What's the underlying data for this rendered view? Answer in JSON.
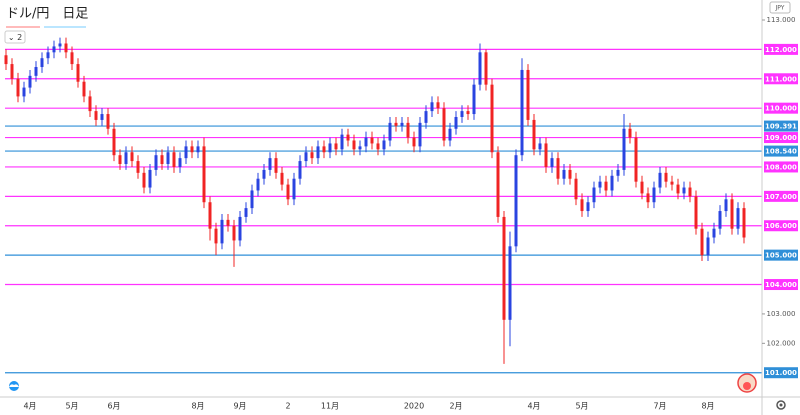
{
  "chart_data": {
    "type": "candlestick",
    "title": "ドル/円　日足",
    "indicator": "⌄ 2",
    "currency": "JPY",
    "up_color": "#2a44e0",
    "down_color": "#f02424",
    "ylim": [
      100.31,
      113.68
    ],
    "yticks": [
      {
        "value": 113,
        "label": "113.000"
      },
      {
        "value": 103,
        "label": "103.000"
      },
      {
        "value": 102,
        "label": "102.000"
      }
    ],
    "hlines": [
      {
        "value": 112,
        "label": "112.000",
        "color": "#ff33ff"
      },
      {
        "value": 111,
        "label": "111.000",
        "color": "#ff33ff"
      },
      {
        "value": 110,
        "label": "110.000",
        "color": "#ff33ff"
      },
      {
        "value": 109.391,
        "label": "109.391",
        "color": "#2f8fd8"
      },
      {
        "value": 109,
        "label": "109.000",
        "color": "#ff33ff"
      },
      {
        "value": 108.54,
        "label": "108.540",
        "color": "#2f8fd8"
      },
      {
        "value": 108,
        "label": "108.000",
        "color": "#ff33ff"
      },
      {
        "value": 107,
        "label": "107.000",
        "color": "#ff33ff"
      },
      {
        "value": 106,
        "label": "106.000",
        "color": "#ff33ff"
      },
      {
        "value": 105,
        "label": "105.000",
        "color": "#2f8fd8"
      },
      {
        "value": 104,
        "label": "104.000",
        "color": "#ff33ff"
      },
      {
        "value": 101,
        "label": "101.000",
        "color": "#2f8fd8"
      }
    ],
    "categories": [
      null,
      null,
      null,
      null,
      "4月",
      null,
      null,
      null,
      null,
      null,
      null,
      "5月",
      null,
      null,
      null,
      null,
      null,
      null,
      "6月",
      null,
      null,
      null,
      null,
      null,
      null,
      null,
      null,
      null,
      null,
      null,
      null,
      null,
      "8月",
      null,
      null,
      null,
      null,
      null,
      null,
      "9月",
      null,
      null,
      null,
      null,
      null,
      null,
      null,
      "2",
      null,
      null,
      null,
      null,
      null,
      null,
      "11月",
      null,
      null,
      null,
      null,
      null,
      null,
      null,
      null,
      null,
      null,
      null,
      null,
      null,
      "2020",
      null,
      null,
      null,
      null,
      null,
      null,
      "2月",
      null,
      null,
      null,
      null,
      null,
      null,
      null,
      null,
      null,
      null,
      null,
      null,
      "4月",
      null,
      null,
      null,
      null,
      null,
      null,
      null,
      "5月",
      null,
      null,
      null,
      null,
      null,
      null,
      null,
      null,
      null,
      null,
      null,
      null,
      "7月",
      null,
      null,
      null,
      null,
      null,
      null,
      null,
      "8月",
      null,
      null,
      null,
      null,
      null,
      null
    ],
    "open": [
      111.8,
      111.5,
      111.0,
      110.4,
      110.7,
      111.1,
      111.4,
      111.7,
      111.9,
      112.1,
      112.2,
      111.9,
      111.5,
      110.9,
      110.4,
      109.9,
      109.6,
      109.8,
      109.3,
      108.4,
      108.1,
      108.5,
      108.2,
      107.8,
      107.3,
      107.9,
      108.4,
      108.1,
      108.5,
      108.0,
      108.3,
      108.7,
      108.5,
      108.7,
      106.8,
      105.9,
      105.4,
      106.2,
      106.0,
      105.5,
      106.3,
      106.6,
      107.2,
      107.6,
      107.9,
      108.3,
      107.8,
      107.4,
      106.9,
      107.6,
      108.2,
      108.5,
      108.3,
      108.7,
      108.5,
      108.8,
      108.6,
      109.1,
      108.9,
      108.6,
      108.7,
      109.0,
      108.8,
      108.6,
      108.9,
      109.5,
      109.4,
      109.5,
      109.0,
      108.7,
      109.5,
      109.9,
      110.2,
      110.0,
      108.9,
      109.3,
      109.7,
      109.9,
      109.8,
      110.8,
      111.9,
      110.8,
      108.5,
      106.3,
      102.8,
      105.3,
      108.4,
      111.3,
      109.6,
      108.6,
      108.8,
      108.0,
      108.3,
      107.6,
      107.9,
      107.6,
      106.9,
      106.5,
      106.8,
      107.3,
      107.5,
      107.2,
      107.7,
      107.9,
      109.3,
      109.0,
      107.5,
      107.1,
      106.8,
      107.3,
      107.8,
      107.5,
      107.4,
      107.1,
      107.3,
      107.0,
      105.9,
      105.0,
      105.6,
      105.9,
      106.5,
      106.9,
      105.9,
      106.6
    ],
    "high": [
      112.0,
      111.7,
      111.2,
      110.9,
      111.3,
      111.6,
      111.9,
      112.1,
      112.3,
      112.4,
      112.4,
      112.1,
      111.7,
      111.1,
      110.6,
      110.1,
      110.0,
      110.0,
      109.5,
      108.6,
      108.7,
      108.7,
      108.4,
      108.0,
      108.1,
      108.6,
      108.6,
      108.7,
      108.7,
      108.5,
      108.9,
      108.9,
      108.9,
      109.0,
      107.0,
      106.1,
      106.4,
      106.4,
      106.2,
      106.5,
      106.8,
      107.4,
      107.8,
      108.1,
      108.5,
      108.5,
      108.0,
      107.6,
      107.8,
      108.4,
      108.7,
      108.7,
      108.9,
      108.9,
      109.0,
      109.0,
      109.3,
      109.3,
      109.1,
      108.9,
      109.2,
      109.2,
      109.0,
      109.1,
      109.7,
      109.7,
      109.7,
      109.7,
      109.2,
      109.7,
      110.1,
      110.4,
      110.4,
      110.2,
      109.5,
      109.9,
      110.1,
      110.1,
      111.0,
      112.2,
      112.0,
      111.0,
      108.7,
      106.5,
      105.8,
      108.6,
      111.7,
      111.5,
      109.8,
      109.0,
      109.0,
      108.5,
      108.5,
      108.1,
      108.1,
      107.8,
      107.1,
      107.0,
      107.5,
      107.7,
      107.7,
      107.9,
      108.1,
      109.8,
      109.5,
      109.2,
      107.7,
      107.3,
      107.5,
      108.0,
      108.0,
      107.7,
      107.6,
      107.5,
      107.5,
      107.2,
      106.1,
      105.8,
      106.1,
      106.7,
      107.1,
      107.1,
      106.8,
      106.8
    ],
    "low": [
      111.3,
      110.8,
      110.2,
      110.2,
      110.5,
      110.9,
      111.2,
      111.5,
      111.7,
      111.9,
      111.7,
      111.3,
      110.7,
      110.2,
      109.7,
      109.4,
      109.4,
      109.1,
      108.2,
      107.9,
      107.9,
      108.0,
      107.6,
      107.1,
      107.1,
      107.7,
      107.9,
      107.9,
      107.8,
      107.8,
      108.1,
      108.3,
      108.3,
      106.6,
      105.5,
      105.0,
      105.2,
      105.8,
      104.6,
      105.3,
      106.1,
      106.4,
      107.0,
      107.4,
      107.7,
      107.6,
      107.2,
      106.7,
      106.7,
      107.4,
      108.0,
      108.1,
      108.1,
      108.3,
      108.3,
      108.4,
      108.4,
      108.7,
      108.4,
      108.4,
      108.5,
      108.6,
      108.4,
      108.4,
      108.7,
      109.2,
      109.2,
      108.8,
      108.5,
      108.5,
      109.3,
      109.7,
      109.8,
      108.7,
      108.7,
      109.1,
      109.5,
      109.6,
      109.6,
      110.6,
      110.6,
      108.3,
      106.1,
      101.3,
      101.9,
      105.1,
      108.2,
      109.4,
      108.4,
      108.4,
      107.8,
      107.8,
      107.4,
      107.4,
      107.4,
      106.7,
      106.3,
      106.3,
      106.6,
      107.1,
      107.0,
      107.0,
      107.5,
      107.7,
      108.8,
      107.3,
      106.9,
      106.6,
      106.6,
      107.1,
      107.3,
      107.2,
      106.9,
      106.9,
      106.8,
      105.7,
      104.8,
      104.8,
      105.4,
      105.7,
      106.3,
      105.7,
      105.7,
      105.4
    ],
    "close": [
      111.5,
      111.0,
      110.4,
      110.7,
      111.1,
      111.4,
      111.7,
      111.9,
      112.1,
      112.2,
      111.9,
      111.5,
      110.9,
      110.4,
      109.9,
      109.6,
      109.8,
      109.3,
      108.4,
      108.1,
      108.5,
      108.2,
      107.8,
      107.3,
      107.9,
      108.4,
      108.1,
      108.5,
      108.0,
      108.3,
      108.7,
      108.5,
      108.7,
      106.8,
      105.9,
      105.4,
      106.2,
      106.0,
      105.5,
      106.3,
      106.6,
      107.2,
      107.6,
      107.9,
      108.3,
      107.8,
      107.4,
      106.9,
      107.6,
      108.2,
      108.5,
      108.3,
      108.7,
      108.5,
      108.8,
      108.6,
      109.1,
      108.9,
      108.6,
      108.7,
      109.0,
      108.8,
      108.6,
      108.9,
      109.5,
      109.4,
      109.5,
      109.0,
      108.7,
      109.5,
      109.9,
      110.2,
      110.0,
      108.9,
      109.3,
      109.7,
      109.9,
      109.8,
      110.8,
      111.9,
      110.8,
      108.5,
      106.3,
      102.8,
      105.3,
      108.4,
      111.3,
      109.6,
      108.6,
      108.8,
      108.0,
      108.3,
      107.6,
      107.9,
      107.6,
      106.9,
      106.5,
      106.8,
      107.3,
      107.5,
      107.2,
      107.7,
      107.9,
      109.3,
      109.0,
      107.5,
      107.1,
      106.8,
      107.3,
      107.8,
      107.5,
      107.4,
      107.1,
      107.3,
      107.0,
      105.9,
      105.0,
      105.6,
      105.9,
      106.5,
      106.9,
      105.9,
      106.6,
      105.6
    ]
  }
}
